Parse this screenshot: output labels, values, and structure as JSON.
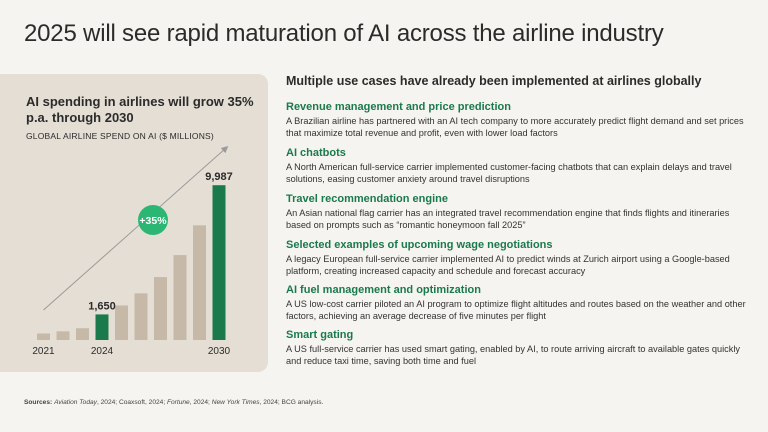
{
  "title": "2025 will see rapid maturation of AI across the airline industry",
  "panel": {
    "heading": "AI spending in airlines will grow 35% p.a. through 2030",
    "subheading": "GLOBAL AIRLINE SPEND ON AI ($ MILLIONS)"
  },
  "chart_data": {
    "type": "bar",
    "title": "GLOBAL AIRLINE SPEND ON AI ($ MILLIONS)",
    "categories": [
      "2021",
      "2022",
      "2023",
      "2024",
      "2025",
      "2026",
      "2027",
      "2028",
      "2029",
      "2030"
    ],
    "values": [
      420,
      560,
      760,
      1650,
      2230,
      3010,
      4060,
      5480,
      7400,
      9987
    ],
    "tick_labels": [
      "2021",
      "2024",
      "2030"
    ],
    "data_labels": [
      {
        "category": "2024",
        "label": "1,650"
      },
      {
        "category": "2030",
        "label": "9,987"
      }
    ],
    "highlight_categories": [
      "2024",
      "2030"
    ],
    "growth_badge": "+35%",
    "ylim": [
      0,
      10000
    ],
    "colors": {
      "base": "#c7b9a8",
      "highlight": "#1b7a4b",
      "badge": "#2bb673",
      "arrow": "#9a9a9a"
    }
  },
  "use_cases": {
    "heading": "Multiple use cases have already been implemented at airlines globally",
    "items": [
      {
        "title": "Revenue management and price prediction",
        "desc": "A Brazilian airline has partnered with an AI tech company to more accurately predict flight demand and set prices that maximize total revenue and profit, even with lower load factors"
      },
      {
        "title": "AI chatbots",
        "desc": "A North American full-service carrier implemented customer-facing chatbots that can explain delays and travel solutions, easing customer anxiety around travel disruptions"
      },
      {
        "title": "Travel recommendation engine",
        "desc": "An Asian national flag carrier has an integrated travel recommendation engine that finds flights and itineraries based on prompts such as “romantic honeymoon fall 2025”"
      },
      {
        "title": "Selected examples of upcoming wage negotiations",
        "desc": "A legacy European full-service carrier implemented AI to predict winds at Zurich airport using a Google-based platform, creating increased capacity and schedule and forecast accuracy"
      },
      {
        "title": "AI fuel management and optimization",
        "desc": "A US low-cost carrier piloted an AI program to optimize flight altitudes and routes based on the weather and other factors, achieving an average decrease of five minutes per flight"
      },
      {
        "title": "Smart gating",
        "desc": "A US full-service carrier has used smart gating, enabled by AI, to route arriving aircraft to available gates quickly and reduce taxi time, saving both time and fuel"
      }
    ]
  },
  "sources": {
    "label": "Sources:",
    "parts": [
      {
        "text": "Aviation Today",
        "italic": true
      },
      {
        "text": ", 2024; Coaxsoft, 2024; ",
        "italic": false
      },
      {
        "text": "Fortune",
        "italic": true
      },
      {
        "text": ", 2024; ",
        "italic": false
      },
      {
        "text": "New York Times",
        "italic": true
      },
      {
        "text": ", 2024; BCG analysis.",
        "italic": false
      }
    ]
  }
}
